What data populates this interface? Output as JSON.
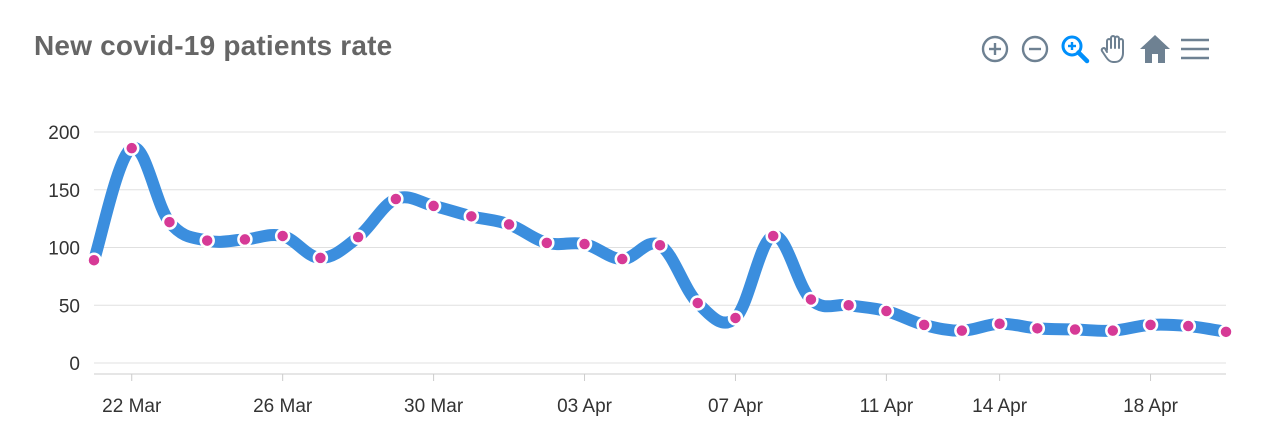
{
  "title": "New covid-19 patients rate",
  "toolbar": {
    "icons": [
      "zoom-in-icon",
      "zoom-out-icon",
      "selection-zoom-icon",
      "pan-hand-icon",
      "home-reset-icon",
      "menu-icon"
    ],
    "inactive_color": "#6e8192",
    "active_color": "#008ffb"
  },
  "chart_data": {
    "type": "line",
    "title": "New covid-19 patients rate",
    "xlabel": "",
    "ylabel": "",
    "x": [
      "21 Mar",
      "22 Mar",
      "23 Mar",
      "24 Mar",
      "25 Mar",
      "26 Mar",
      "27 Mar",
      "28 Mar",
      "29 Mar",
      "30 Mar",
      "31 Mar",
      "01 Apr",
      "02 Apr",
      "03 Apr",
      "04 Apr",
      "05 Apr",
      "06 Apr",
      "07 Apr",
      "08 Apr",
      "09 Apr",
      "10 Apr",
      "11 Apr",
      "12 Apr",
      "13 Apr",
      "14 Apr",
      "15 Apr",
      "16 Apr",
      "17 Apr",
      "18 Apr",
      "19 Apr",
      "20 Apr"
    ],
    "series": [
      {
        "values": [
          89,
          186,
          122,
          106,
          107,
          110,
          91,
          109,
          142,
          136,
          127,
          120,
          104,
          103,
          90,
          102,
          52,
          39,
          110,
          55,
          50,
          45,
          33,
          28,
          34,
          30,
          29,
          28,
          33,
          32,
          27
        ],
        "color": "#3b8ede",
        "marker_color": "#d63a96"
      }
    ],
    "ylim": [
      0,
      200
    ],
    "yticks": [
      0,
      50,
      100,
      150,
      200
    ],
    "xticks": [
      "22 Mar",
      "26 Mar",
      "30 Mar",
      "03 Apr",
      "07 Apr",
      "11 Apr",
      "14 Apr",
      "18 Apr"
    ],
    "xtick_index": [
      1,
      5,
      9,
      13,
      17,
      21,
      24,
      28
    ],
    "grid": true,
    "legend": "none"
  }
}
